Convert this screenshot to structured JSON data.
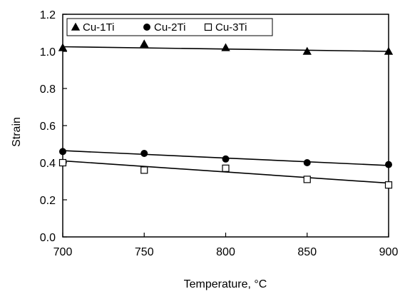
{
  "chart_data": {
    "type": "scatter",
    "title": "",
    "xlabel": "Temperature, °C",
    "ylabel": "Strain",
    "xlim": [
      700,
      900
    ],
    "ylim": [
      0.0,
      1.2
    ],
    "x_ticks": [
      700,
      750,
      800,
      850,
      900
    ],
    "x_tick_labels": [
      "700",
      "750",
      "800",
      "850",
      "900"
    ],
    "y_ticks": [
      0.0,
      0.2,
      0.4,
      0.6,
      0.8,
      1.0,
      1.2
    ],
    "y_tick_labels": [
      "0.0",
      "0.2",
      "0.4",
      "0.6",
      "0.8",
      "1.0",
      "1.2"
    ],
    "grid": false,
    "legend_position": "top-left",
    "series": [
      {
        "name": "Cu-1Ti",
        "marker": "triangle-filled",
        "x": [
          700,
          750,
          800,
          850,
          900
        ],
        "y": [
          1.02,
          1.04,
          1.02,
          1.0,
          1.0
        ],
        "trend": [
          [
            700,
            1.025
          ],
          [
            900,
            1.0
          ]
        ]
      },
      {
        "name": "Cu-2Ti",
        "marker": "circle-filled",
        "x": [
          700,
          750,
          800,
          850,
          900
        ],
        "y": [
          0.46,
          0.45,
          0.42,
          0.4,
          0.39
        ],
        "trend": [
          [
            700,
            0.465
          ],
          [
            900,
            0.385
          ]
        ]
      },
      {
        "name": "Cu-3Ti",
        "marker": "square-open",
        "x": [
          700,
          750,
          800,
          850,
          900
        ],
        "y": [
          0.4,
          0.36,
          0.37,
          0.31,
          0.28
        ],
        "trend": [
          [
            700,
            0.41
          ],
          [
            900,
            0.29
          ]
        ]
      }
    ]
  }
}
